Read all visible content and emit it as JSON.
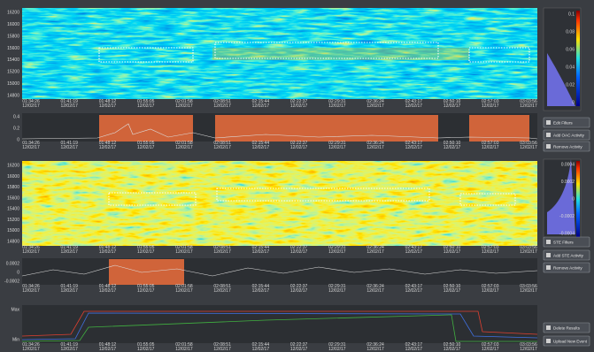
{
  "times": [
    "01:34:26",
    "01:41:19",
    "01:48:12",
    "01:55:05",
    "02:01:58",
    "02:08:51",
    "02:15:44",
    "02:22:37",
    "02:29:31",
    "02:36:24",
    "02:43:17",
    "02:50:10",
    "02:57:03",
    "03:03:56"
  ],
  "date": "12/02/17",
  "panel1": {
    "y_labels": [
      "16200",
      "16000",
      "15800",
      "15600",
      "15400",
      "15200",
      "15000",
      "14800"
    ],
    "colorbar_labels": [
      "0.1",
      "0.08",
      "0.06",
      "0.04",
      "0.02",
      "0"
    ]
  },
  "panel2": {
    "y_labels": [
      "0.4",
      "0.2",
      "0"
    ]
  },
  "panel3": {
    "y_labels": [
      "16200",
      "16000",
      "15800",
      "15600",
      "15400",
      "15200",
      "15000",
      "14800"
    ],
    "colorbar_labels": [
      "0.0004",
      "0.0002",
      "0",
      "-0.0002",
      "-0.0004"
    ]
  },
  "panel4": {
    "y_labels": [
      "0.0002",
      "0",
      "-0.0002"
    ]
  },
  "panel5": {
    "y_labels": [
      "Max",
      "Min"
    ]
  },
  "buttons_top": [
    "Edit Filters",
    "Add OAC Activity",
    "Remove Activity"
  ],
  "buttons_mid": [
    "STE Filters",
    "Add STE Activity",
    "Remove Activity"
  ],
  "buttons_bottom": [
    "Delete Results",
    "Upload New Event"
  ]
}
